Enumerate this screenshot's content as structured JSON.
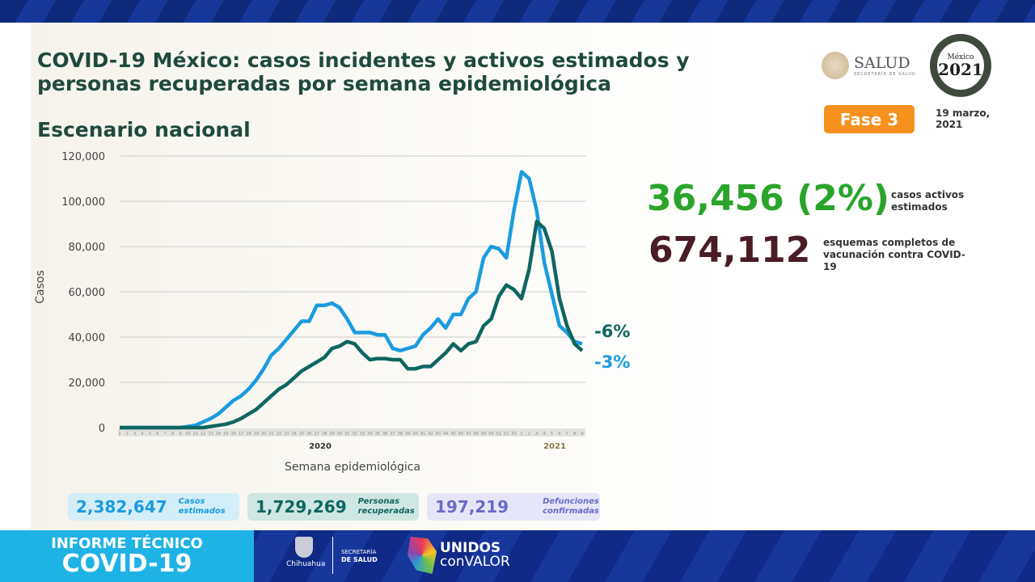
{
  "header": {
    "title": "COVID-19 México: casos incidentes y activos estimados y personas recuperadas por semana epidemiológica",
    "subtitle": "Escenario nacional",
    "phase": "Fase 3",
    "date": "19 marzo, 2021",
    "logo_salud": "SALUD",
    "logo_salud_sub": "SECRETARÍA DE SALUD",
    "logo_2021": "México 2021 Año de la Independencia"
  },
  "kpis": {
    "active_value": "36,456 (2%)",
    "active_label": "casos activos estimados",
    "vacc_value": "674,112",
    "vacc_label": "esquemas completos de vacunación contra COVID-19"
  },
  "stats": [
    {
      "value": "2,382,647",
      "label": "Casos estimados"
    },
    {
      "value": "1,729,269",
      "label": "Personas recuperadas"
    },
    {
      "value": "197,219",
      "label": "Defunciones confirmadas"
    }
  ],
  "footer": {
    "line1": "INFORME TÉCNICO",
    "line2": "COVID-19",
    "chihuahua": "Chihuahua",
    "sec1": "SECRETARÍA",
    "sec2": "DE SALUD",
    "unidos1": "UNIDOS",
    "unidos2": "conVALOR"
  },
  "colors": {
    "light": "#1a9be0",
    "dark": "#0f6660",
    "active": "#2aa42a",
    "vacc": "#4a1c26",
    "phase": "#f5921e"
  },
  "chart_data": {
    "type": "line",
    "xlabel": "Semana epidemiológica",
    "ylabel": "Casos",
    "ylim": [
      0,
      120000
    ],
    "yticks": [
      0,
      20000,
      40000,
      60000,
      80000,
      100000,
      120000
    ],
    "ytick_labels": [
      "0",
      "20,000",
      "40,000",
      "60,000",
      "80,000",
      "100,000",
      "120,000"
    ],
    "year_labels": [
      "2020",
      "2021"
    ],
    "weeks_2020": 53,
    "weeks_2021": 9,
    "series": [
      {
        "color": "#1a9be0",
        "end_label": "-3%",
        "values": [
          0,
          0,
          0,
          0,
          0,
          0,
          0,
          0,
          0,
          500,
          1000,
          2500,
          4000,
          6000,
          9000,
          12000,
          14000,
          17000,
          21000,
          26000,
          32000,
          35000,
          39000,
          43000,
          47000,
          47000,
          54000,
          54000,
          55000,
          53000,
          48000,
          42000,
          42000,
          42000,
          41000,
          41000,
          35000,
          34000,
          35000,
          36000,
          41000,
          44000,
          48000,
          44000,
          50000,
          50000,
          57000,
          60000,
          75000,
          80000,
          79000,
          75000,
          96000,
          113000,
          110000,
          96000,
          73000,
          59000,
          45000,
          42000,
          38000,
          37000
        ]
      },
      {
        "color": "#0f6660",
        "end_label": "-6%",
        "values": [
          0,
          0,
          0,
          0,
          0,
          0,
          0,
          0,
          0,
          0,
          0,
          0,
          500,
          1000,
          1500,
          2500,
          4000,
          6000,
          8000,
          11000,
          14000,
          17000,
          19000,
          22000,
          25000,
          27000,
          29000,
          31000,
          35000,
          36000,
          38000,
          37000,
          33000,
          30000,
          30500,
          30500,
          30000,
          30000,
          26000,
          26000,
          27000,
          27000,
          30000,
          33000,
          37000,
          34000,
          37000,
          38000,
          45000,
          48000,
          58000,
          63000,
          61000,
          57000,
          70000,
          91000,
          88000,
          78000,
          57000,
          45000,
          37000,
          34000
        ]
      }
    ]
  }
}
